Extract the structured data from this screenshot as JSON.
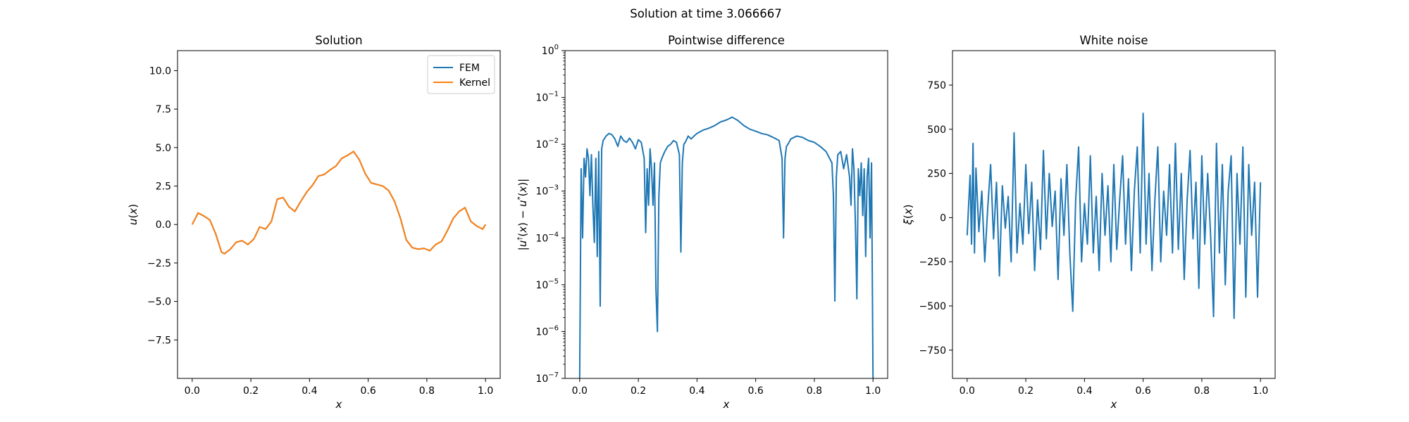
{
  "figure": {
    "suptitle": "Solution at time 3.066667"
  },
  "chart_data": [
    {
      "type": "line",
      "title": "Solution",
      "xlabel": "x",
      "ylabel": "u(x)",
      "xlim": [
        -0.05,
        1.05
      ],
      "ylim": [
        -10,
        11.3
      ],
      "xticks": [
        0.0,
        0.2,
        0.4,
        0.6,
        0.8,
        1.0
      ],
      "xtick_labels": [
        "0.0",
        "0.2",
        "0.4",
        "0.6",
        "0.8",
        "1.0"
      ],
      "yticks": [
        -7.5,
        -5.0,
        -2.5,
        0.0,
        2.5,
        5.0,
        7.5,
        10.0
      ],
      "ytick_labels": [
        "−7.5",
        "−5.0",
        "−2.5",
        "0.0",
        "2.5",
        "5.0",
        "7.5",
        "10.0"
      ],
      "grid": false,
      "legend": "top-right",
      "series": [
        {
          "name": "FEM",
          "color": "#1f77b4",
          "x": [
            0.0,
            0.02,
            0.04,
            0.06,
            0.08,
            0.1,
            0.11,
            0.13,
            0.15,
            0.17,
            0.19,
            0.21,
            0.23,
            0.25,
            0.27,
            0.29,
            0.31,
            0.33,
            0.35,
            0.37,
            0.39,
            0.41,
            0.43,
            0.45,
            0.47,
            0.49,
            0.51,
            0.53,
            0.55,
            0.57,
            0.59,
            0.61,
            0.63,
            0.65,
            0.67,
            0.69,
            0.71,
            0.73,
            0.75,
            0.77,
            0.79,
            0.81,
            0.83,
            0.85,
            0.87,
            0.89,
            0.91,
            0.93,
            0.95,
            0.97,
            0.99,
            1.0
          ],
          "y": [
            0.0,
            0.75,
            0.55,
            0.3,
            -0.6,
            -1.8,
            -1.9,
            -1.6,
            -1.15,
            -1.05,
            -1.3,
            -0.95,
            -0.15,
            -0.3,
            0.2,
            1.65,
            1.75,
            1.15,
            0.85,
            1.5,
            2.1,
            2.55,
            3.15,
            3.25,
            3.55,
            3.8,
            4.3,
            4.5,
            4.75,
            4.2,
            3.3,
            2.7,
            2.6,
            2.5,
            2.2,
            1.5,
            0.4,
            -1.0,
            -1.5,
            -1.6,
            -1.55,
            -1.7,
            -1.3,
            -1.1,
            -0.4,
            0.4,
            0.85,
            1.1,
            0.2,
            -0.1,
            -0.3,
            0.0
          ]
        },
        {
          "name": "Kernel",
          "color": "#ff7f0e",
          "x": [
            0.0,
            0.02,
            0.04,
            0.06,
            0.08,
            0.1,
            0.11,
            0.13,
            0.15,
            0.17,
            0.19,
            0.21,
            0.23,
            0.25,
            0.27,
            0.29,
            0.31,
            0.33,
            0.35,
            0.37,
            0.39,
            0.41,
            0.43,
            0.45,
            0.47,
            0.49,
            0.51,
            0.53,
            0.55,
            0.57,
            0.59,
            0.61,
            0.63,
            0.65,
            0.67,
            0.69,
            0.71,
            0.73,
            0.75,
            0.77,
            0.79,
            0.81,
            0.83,
            0.85,
            0.87,
            0.89,
            0.91,
            0.93,
            0.95,
            0.97,
            0.99,
            1.0
          ],
          "y": [
            0.0,
            0.75,
            0.55,
            0.3,
            -0.6,
            -1.8,
            -1.9,
            -1.6,
            -1.15,
            -1.05,
            -1.3,
            -0.95,
            -0.15,
            -0.3,
            0.2,
            1.65,
            1.75,
            1.15,
            0.85,
            1.5,
            2.1,
            2.55,
            3.15,
            3.25,
            3.55,
            3.8,
            4.3,
            4.5,
            4.75,
            4.2,
            3.3,
            2.7,
            2.6,
            2.5,
            2.2,
            1.5,
            0.4,
            -1.0,
            -1.5,
            -1.6,
            -1.55,
            -1.7,
            -1.3,
            -1.1,
            -0.4,
            0.4,
            0.85,
            1.1,
            0.2,
            -0.1,
            -0.3,
            0.0
          ]
        }
      ]
    },
    {
      "type": "line",
      "title": "Pointwise difference",
      "xlabel": "x",
      "ylabel": "|u†(x) − u*(x)|",
      "xlim": [
        -0.05,
        1.05
      ],
      "ylim": [
        1e-07,
        1
      ],
      "yscale": "log",
      "xticks": [
        0.0,
        0.2,
        0.4,
        0.6,
        0.8,
        1.0
      ],
      "xtick_labels": [
        "0.0",
        "0.2",
        "0.4",
        "0.6",
        "0.8",
        "1.0"
      ],
      "yticks": [
        1e-07,
        1e-06,
        1e-05,
        0.0001,
        0.001,
        0.01,
        0.1,
        1
      ],
      "ytick_exponents": [
        "−7",
        "−6",
        "−5",
        "−4",
        "−3",
        "−2",
        "−1",
        "0"
      ],
      "grid": false,
      "series": [
        {
          "color": "#1f77b4",
          "x": [
            0.0,
            0.005,
            0.01,
            0.015,
            0.02,
            0.025,
            0.03,
            0.035,
            0.04,
            0.045,
            0.05,
            0.055,
            0.06,
            0.065,
            0.07,
            0.075,
            0.08,
            0.09,
            0.1,
            0.11,
            0.12,
            0.13,
            0.14,
            0.15,
            0.16,
            0.17,
            0.18,
            0.19,
            0.2,
            0.21,
            0.22,
            0.225,
            0.23,
            0.235,
            0.24,
            0.245,
            0.25,
            0.255,
            0.26,
            0.265,
            0.27,
            0.275,
            0.28,
            0.29,
            0.3,
            0.31,
            0.32,
            0.33,
            0.34,
            0.345,
            0.35,
            0.355,
            0.36,
            0.37,
            0.38,
            0.39,
            0.4,
            0.42,
            0.44,
            0.46,
            0.48,
            0.5,
            0.52,
            0.54,
            0.56,
            0.58,
            0.6,
            0.62,
            0.64,
            0.66,
            0.68,
            0.69,
            0.695,
            0.7,
            0.705,
            0.71,
            0.72,
            0.74,
            0.76,
            0.78,
            0.8,
            0.82,
            0.84,
            0.86,
            0.865,
            0.87,
            0.875,
            0.88,
            0.89,
            0.9,
            0.91,
            0.92,
            0.925,
            0.93,
            0.935,
            0.94,
            0.945,
            0.95,
            0.955,
            0.96,
            0.965,
            0.97,
            0.975,
            0.98,
            0.985,
            0.99,
            0.995,
            1.0
          ],
          "y": [
            1e-07,
            0.003,
            0.0001,
            0.005,
            0.002,
            0.008,
            0.005,
            0.0008,
            0.006,
            0.0005,
            8e-05,
            0.005,
            4e-05,
            0.007,
            3.5e-06,
            0.008,
            0.012,
            0.015,
            0.017,
            0.016,
            0.013,
            0.009,
            0.015,
            0.012,
            0.011,
            0.0135,
            0.011,
            0.008,
            0.0125,
            0.011,
            0.005,
            0.00013,
            0.003,
            0.0005,
            0.008,
            0.003,
            0.0005,
            0.004,
            8e-06,
            1e-06,
            0.0008,
            0.004,
            0.005,
            0.007,
            0.009,
            0.01,
            0.012,
            0.011,
            0.006,
            5e-05,
            0.004,
            0.01,
            0.011,
            0.015,
            0.013,
            0.015,
            0.017,
            0.02,
            0.022,
            0.025,
            0.03,
            0.033,
            0.038,
            0.032,
            0.025,
            0.021,
            0.019,
            0.017,
            0.016,
            0.014,
            0.012,
            0.005,
            0.0001,
            0.005,
            0.009,
            0.01,
            0.013,
            0.015,
            0.014,
            0.012,
            0.011,
            0.009,
            0.007,
            0.004,
            0.0008,
            4.5e-06,
            0.002,
            0.006,
            0.007,
            0.003,
            0.006,
            0.002,
            0.0005,
            0.008,
            0.003,
            0.0002,
            5e-06,
            0.003,
            0.0008,
            0.004,
            0.0003,
            0.003,
            4e-05,
            0.002,
            0.005,
            0.0001,
            0.004,
            1e-07
          ]
        }
      ]
    },
    {
      "type": "line",
      "title": "White noise",
      "xlabel": "x",
      "ylabel": "ξ(x)",
      "xlim": [
        -0.05,
        1.05
      ],
      "ylim": [
        -910,
        945
      ],
      "xticks": [
        0.0,
        0.2,
        0.4,
        0.6,
        0.8,
        1.0
      ],
      "xtick_labels": [
        "0.0",
        "0.2",
        "0.4",
        "0.6",
        "0.8",
        "1.0"
      ],
      "yticks": [
        -750,
        -500,
        -250,
        0,
        250,
        500,
        750
      ],
      "ytick_labels": [
        "−750",
        "−500",
        "−250",
        "0",
        "250",
        "500",
        "750"
      ],
      "grid": false,
      "series": [
        {
          "color": "#1f77b4",
          "x": [
            0.0,
            0.01,
            0.015,
            0.02,
            0.025,
            0.03,
            0.04,
            0.05,
            0.06,
            0.07,
            0.08,
            0.09,
            0.1,
            0.11,
            0.12,
            0.13,
            0.14,
            0.15,
            0.16,
            0.17,
            0.18,
            0.19,
            0.2,
            0.21,
            0.22,
            0.23,
            0.24,
            0.25,
            0.26,
            0.27,
            0.28,
            0.29,
            0.3,
            0.31,
            0.32,
            0.33,
            0.34,
            0.35,
            0.36,
            0.37,
            0.38,
            0.39,
            0.4,
            0.41,
            0.42,
            0.43,
            0.44,
            0.45,
            0.46,
            0.47,
            0.48,
            0.49,
            0.5,
            0.51,
            0.52,
            0.53,
            0.54,
            0.55,
            0.56,
            0.57,
            0.58,
            0.59,
            0.6,
            0.61,
            0.62,
            0.63,
            0.64,
            0.65,
            0.66,
            0.67,
            0.68,
            0.69,
            0.7,
            0.71,
            0.72,
            0.73,
            0.74,
            0.75,
            0.76,
            0.77,
            0.78,
            0.79,
            0.8,
            0.81,
            0.82,
            0.83,
            0.84,
            0.85,
            0.86,
            0.87,
            0.88,
            0.89,
            0.9,
            0.91,
            0.92,
            0.93,
            0.94,
            0.95,
            0.96,
            0.97,
            0.98,
            0.99,
            1.0
          ],
          "y": [
            -100,
            240,
            -150,
            420,
            -200,
            280,
            -80,
            150,
            -250,
            50,
            300,
            -120,
            200,
            -330,
            180,
            -60,
            120,
            -250,
            480,
            -200,
            80,
            -150,
            300,
            -90,
            200,
            -300,
            100,
            -180,
            380,
            -120,
            250,
            -50,
            150,
            -350,
            220,
            -100,
            300,
            -200,
            -530,
            100,
            400,
            -250,
            80,
            -150,
            350,
            -200,
            120,
            -300,
            250,
            -100,
            180,
            -250,
            300,
            -180,
            100,
            350,
            -150,
            220,
            -300,
            150,
            400,
            -200,
            590,
            -150,
            250,
            -300,
            100,
            400,
            -250,
            150,
            -100,
            300,
            -200,
            420,
            -180,
            250,
            -350,
            100,
            380,
            -120,
            200,
            -400,
            350,
            -150,
            250,
            -100,
            -560,
            420,
            -200,
            300,
            -380,
            150,
            350,
            -570,
            250,
            -150,
            400,
            -450,
            300,
            -100,
            200,
            -450,
            200
          ]
        }
      ]
    }
  ]
}
